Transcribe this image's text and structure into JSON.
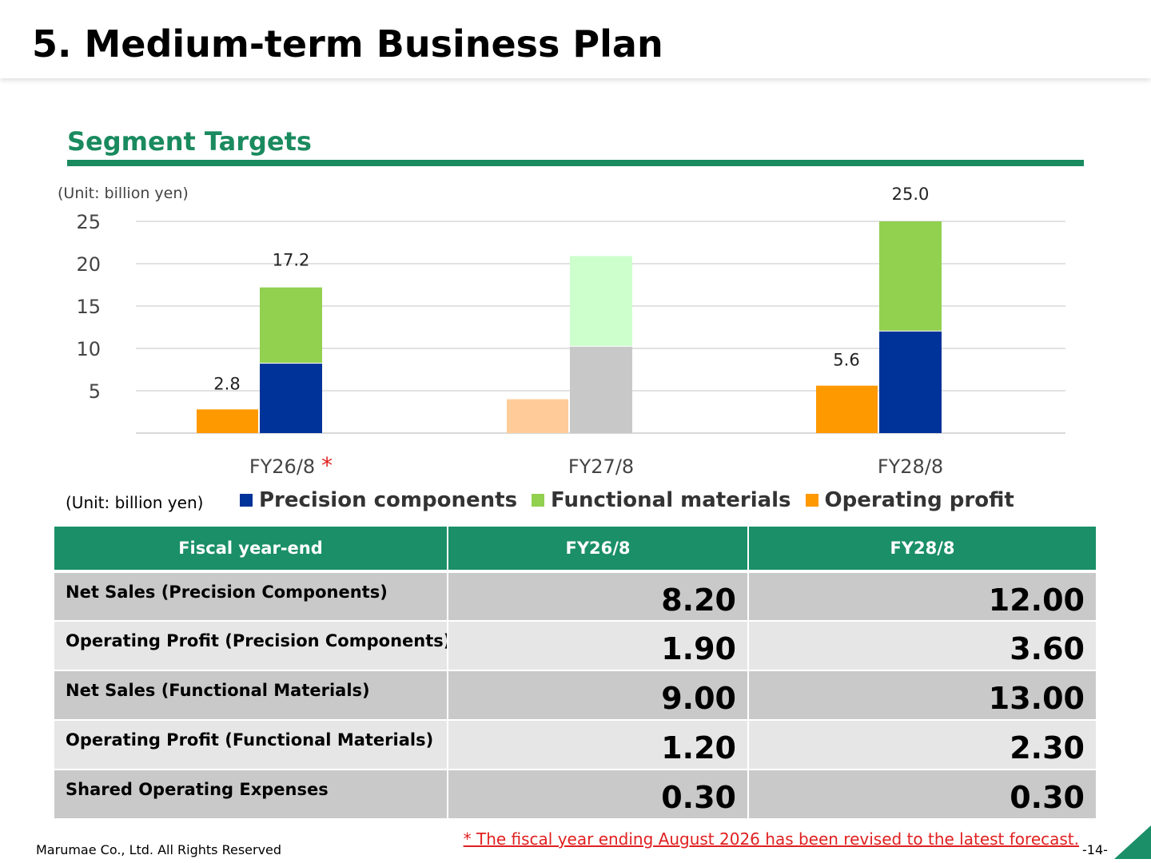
{
  "header": {
    "title": "5. Medium-term Business Plan"
  },
  "section": {
    "title": "Segment Targets"
  },
  "units": {
    "chart": "(Unit: billion yen)",
    "table": "(Unit: billion yen)"
  },
  "colors": {
    "precision": "#003399",
    "functional": "#92d050",
    "operating": "#ff9900",
    "precision_faded": "#c8c8c8",
    "functional_faded": "#ccffcc",
    "operating_faded": "#ffcc99",
    "accent": "#1a8f68",
    "note": "#e02020"
  },
  "chart_data": {
    "type": "bar",
    "categories": [
      "FY26/8",
      "FY27/8",
      "FY28/8"
    ],
    "category_marks": [
      "*",
      "",
      ""
    ],
    "faded_categories": [
      "FY27/8"
    ],
    "ylim": [
      0,
      25
    ],
    "yticks": [
      5,
      10,
      15,
      20,
      25
    ],
    "grid": true,
    "legend_position": "bottom",
    "series": [
      {
        "name": "Precision components",
        "key": "precision",
        "stack": "sales",
        "values": [
          8.2,
          10.2,
          12.0
        ]
      },
      {
        "name": "Functional materials",
        "key": "functional",
        "stack": "sales",
        "values": [
          9.0,
          10.7,
          13.0
        ]
      },
      {
        "name": "Operating profit",
        "key": "operating",
        "stack": "profit",
        "values": [
          2.8,
          4.0,
          5.6
        ]
      }
    ],
    "data_labels": {
      "sales_total": [
        "17.2",
        "",
        "25.0"
      ],
      "profit": [
        "2.8",
        "",
        "5.6"
      ]
    }
  },
  "legend": {
    "items": [
      {
        "label": "Precision components",
        "key": "precision"
      },
      {
        "label": "Functional materials",
        "key": "functional"
      },
      {
        "label": "Operating profit",
        "key": "operating"
      }
    ]
  },
  "table": {
    "headers": [
      "Fiscal year-end",
      "FY26/8",
      "FY28/8"
    ],
    "rows": [
      {
        "label": "Net Sales (Precision Components)",
        "values": [
          "8.20",
          "12.00"
        ]
      },
      {
        "label": "Operating Profit (Precision Components)",
        "values": [
          "1.90",
          "3.60"
        ]
      },
      {
        "label": "Net Sales (Functional Materials)",
        "values": [
          "9.00",
          "13.00"
        ]
      },
      {
        "label": "Operating Profit (Functional Materials)",
        "values": [
          "1.20",
          "2.30"
        ]
      },
      {
        "label": "Shared Operating Expenses",
        "values": [
          "0.30",
          "0.30"
        ]
      }
    ]
  },
  "footer": {
    "note": "* The fiscal year ending August 2026 has been revised to the latest forecast.",
    "copyright": "Marumae Co., Ltd. All Rights Reserved",
    "page": "-14-"
  }
}
